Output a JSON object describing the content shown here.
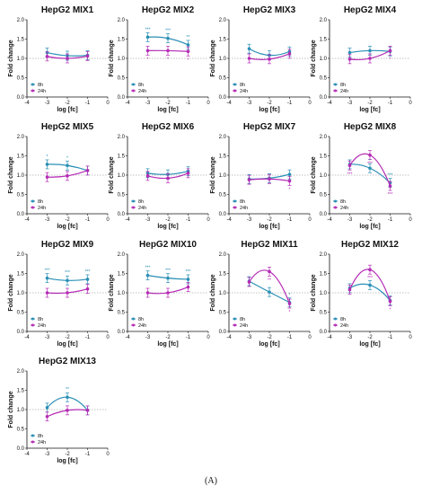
{
  "figure_caption": "(A)",
  "colors": {
    "h8": "#2a8fb5",
    "h24": "#b52bb5",
    "reference": "#888888"
  },
  "chart_data": [
    {
      "type": "line",
      "title": "HepG2 MIX1",
      "xlabel": "log [fc]",
      "ylabel": "Fold change",
      "x_ticks": [
        -4,
        -3,
        -2,
        -1,
        0
      ],
      "y_ticks": [
        0,
        0.5,
        1,
        1.5,
        2
      ],
      "xlim": [
        -4,
        0
      ],
      "ylim": [
        0,
        2
      ],
      "reference_line": 1,
      "legend": [
        "8h",
        "24h"
      ],
      "legend_position": "bottom-left",
      "x": [
        -3,
        -2,
        -1
      ],
      "series": [
        {
          "name": "8h",
          "values": [
            1.15,
            1.07,
            1.08
          ]
        },
        {
          "name": "24h",
          "values": [
            1.05,
            1.0,
            1.06
          ]
        }
      ],
      "annotations": []
    },
    {
      "type": "line",
      "title": "HepG2 MIX2",
      "xlabel": "log [fc]",
      "ylabel": "Fold change",
      "x_ticks": [
        -4,
        -3,
        -2,
        -1,
        0
      ],
      "y_ticks": [
        0,
        0.5,
        1,
        1.5,
        2
      ],
      "xlim": [
        -4,
        0
      ],
      "ylim": [
        0,
        2
      ],
      "reference_line": 1,
      "legend": [
        "8h",
        "24h"
      ],
      "legend_position": "bottom-left",
      "x": [
        -3,
        -2,
        -1
      ],
      "series": [
        {
          "name": "8h",
          "values": [
            1.55,
            1.52,
            1.35
          ]
        },
        {
          "name": "24h",
          "values": [
            1.2,
            1.2,
            1.18
          ]
        }
      ],
      "annotations": [
        {
          "series": "8h",
          "x": -3,
          "text": "***"
        },
        {
          "series": "8h",
          "x": -2,
          "text": "***"
        },
        {
          "series": "8h",
          "x": -1,
          "text": "**"
        },
        {
          "series": "24h",
          "x": -3,
          "text": "*"
        },
        {
          "series": "24h",
          "x": -2,
          "text": "*"
        },
        {
          "series": "24h",
          "x": -1,
          "text": "*"
        }
      ]
    },
    {
      "type": "line",
      "title": "HepG2 MIX3",
      "xlabel": "log [fc]",
      "ylabel": "Fold change",
      "x_ticks": [
        -4,
        -3,
        -2,
        -1,
        0
      ],
      "y_ticks": [
        0,
        0.5,
        1,
        1.5,
        2
      ],
      "xlim": [
        -4,
        0
      ],
      "ylim": [
        0,
        2
      ],
      "reference_line": 1,
      "legend": [
        "8h",
        "24h"
      ],
      "legend_position": "bottom-left",
      "x": [
        -3,
        -2,
        -1
      ],
      "series": [
        {
          "name": "8h",
          "values": [
            1.25,
            1.08,
            1.18
          ]
        },
        {
          "name": "24h",
          "values": [
            1.0,
            0.98,
            1.12
          ]
        }
      ],
      "annotations": []
    },
    {
      "type": "line",
      "title": "HepG2 MIX4",
      "xlabel": "log [fc]",
      "ylabel": "Fold change",
      "x_ticks": [
        -4,
        -3,
        -2,
        -1,
        0
      ],
      "y_ticks": [
        0,
        0.5,
        1,
        1.5,
        2
      ],
      "xlim": [
        -4,
        0
      ],
      "ylim": [
        0,
        2
      ],
      "reference_line": 1,
      "legend": [
        "8h",
        "24h"
      ],
      "legend_position": "bottom-left",
      "x": [
        -3,
        -2,
        -1
      ],
      "series": [
        {
          "name": "8h",
          "values": [
            1.15,
            1.2,
            1.18
          ]
        },
        {
          "name": "24h",
          "values": [
            0.98,
            1.0,
            1.2
          ]
        }
      ],
      "annotations": [
        {
          "series": "24h",
          "x": -1,
          "text": "*"
        }
      ]
    },
    {
      "type": "line",
      "title": "HepG2 MIX5",
      "xlabel": "log [fc]",
      "ylabel": "Fold change",
      "x_ticks": [
        -4,
        -3,
        -2,
        -1,
        0
      ],
      "y_ticks": [
        0,
        0.5,
        1,
        1.5,
        2
      ],
      "xlim": [
        -4,
        0
      ],
      "ylim": [
        0,
        2
      ],
      "reference_line": 1,
      "legend": [
        "8h",
        "24h"
      ],
      "legend_position": "bottom-left",
      "x": [
        -3,
        -2,
        -1
      ],
      "series": [
        {
          "name": "8h",
          "values": [
            1.28,
            1.25,
            1.12
          ]
        },
        {
          "name": "24h",
          "values": [
            0.95,
            0.98,
            1.12
          ]
        }
      ],
      "annotations": [
        {
          "series": "8h",
          "x": -3,
          "text": "*"
        },
        {
          "series": "8h",
          "x": -2,
          "text": "*"
        }
      ]
    },
    {
      "type": "line",
      "title": "HepG2 MIX6",
      "xlabel": "log [fc]",
      "ylabel": "Fold change",
      "x_ticks": [
        -4,
        -3,
        -2,
        -1,
        0
      ],
      "y_ticks": [
        0,
        0.5,
        1,
        1.5,
        2
      ],
      "xlim": [
        -4,
        0
      ],
      "ylim": [
        0,
        2
      ],
      "reference_line": 1,
      "legend": [
        "8h",
        "24h"
      ],
      "legend_position": "bottom-left",
      "x": [
        -3,
        -2,
        -1
      ],
      "series": [
        {
          "name": "8h",
          "values": [
            1.05,
            1.02,
            1.1
          ]
        },
        {
          "name": "24h",
          "values": [
            0.98,
            0.92,
            1.05
          ]
        }
      ],
      "annotations": []
    },
    {
      "type": "line",
      "title": "HepG2 MIX7",
      "xlabel": "log [fc]",
      "ylabel": "Fold change",
      "x_ticks": [
        -4,
        -3,
        -2,
        -1,
        0
      ],
      "y_ticks": [
        0,
        0.5,
        1,
        1.5,
        2
      ],
      "xlim": [
        -4,
        0
      ],
      "ylim": [
        0,
        2
      ],
      "reference_line": 1,
      "legend": [
        "8h",
        "24h"
      ],
      "legend_position": "bottom-left",
      "x": [
        -3,
        -2,
        -1
      ],
      "series": [
        {
          "name": "8h",
          "values": [
            0.9,
            0.92,
            1.02
          ]
        },
        {
          "name": "24h",
          "values": [
            0.88,
            0.9,
            0.85
          ]
        }
      ],
      "annotations": [
        {
          "series": "24h",
          "x": -1,
          "text": "*"
        }
      ]
    },
    {
      "type": "line",
      "title": "HepG2 MIX8",
      "xlabel": "log [fc]",
      "ylabel": "Fold change",
      "x_ticks": [
        -4,
        -3,
        -2,
        -1,
        0
      ],
      "y_ticks": [
        0,
        0.5,
        1,
        1.5,
        2
      ],
      "xlim": [
        -4,
        0
      ],
      "ylim": [
        0,
        2
      ],
      "reference_line": 1,
      "legend": [
        "8h",
        "24h"
      ],
      "legend_position": "bottom-left",
      "x": [
        -3,
        -2,
        -1
      ],
      "series": [
        {
          "name": "8h",
          "values": [
            1.28,
            1.18,
            0.8
          ]
        },
        {
          "name": "24h",
          "values": [
            1.25,
            1.52,
            0.72
          ]
        }
      ],
      "annotations": [
        {
          "series": "8h",
          "x": -2,
          "text": "*"
        },
        {
          "series": "8h",
          "x": -1,
          "text": "***"
        },
        {
          "series": "24h",
          "x": -3,
          "text": "***"
        },
        {
          "series": "24h",
          "x": -2,
          "text": "***"
        },
        {
          "series": "24h",
          "x": -1,
          "text": "***"
        }
      ]
    },
    {
      "type": "line",
      "title": "HepG2 MIX9",
      "xlabel": "log [fc]",
      "ylabel": "Fold change",
      "x_ticks": [
        -4,
        -3,
        -2,
        -1,
        0
      ],
      "y_ticks": [
        0,
        0.5,
        1,
        1.5,
        2
      ],
      "xlim": [
        -4,
        0
      ],
      "ylim": [
        0,
        2
      ],
      "reference_line": 1,
      "legend": [
        "8h",
        "24h"
      ],
      "legend_position": "bottom-left",
      "x": [
        -3,
        -2,
        -1
      ],
      "series": [
        {
          "name": "8h",
          "values": [
            1.38,
            1.32,
            1.35
          ]
        },
        {
          "name": "24h",
          "values": [
            1.0,
            1.0,
            1.1
          ]
        }
      ],
      "annotations": [
        {
          "series": "8h",
          "x": -3,
          "text": "***"
        },
        {
          "series": "8h",
          "x": -2,
          "text": "***"
        },
        {
          "series": "8h",
          "x": -1,
          "text": "***"
        }
      ]
    },
    {
      "type": "line",
      "title": "HepG2 MIX10",
      "xlabel": "log [fc]",
      "ylabel": "Fold change",
      "x_ticks": [
        -4,
        -3,
        -2,
        -1,
        0
      ],
      "y_ticks": [
        0,
        0.5,
        1,
        1.5,
        2
      ],
      "xlim": [
        -4,
        0
      ],
      "ylim": [
        0,
        2
      ],
      "reference_line": 1,
      "legend": [
        "8h",
        "24h"
      ],
      "legend_position": "bottom-left",
      "x": [
        -3,
        -2,
        -1
      ],
      "series": [
        {
          "name": "8h",
          "values": [
            1.45,
            1.38,
            1.35
          ]
        },
        {
          "name": "24h",
          "values": [
            1.0,
            1.0,
            1.15
          ]
        }
      ],
      "annotations": [
        {
          "series": "8h",
          "x": -3,
          "text": "***"
        },
        {
          "series": "8h",
          "x": -2,
          "text": "***"
        },
        {
          "series": "8h",
          "x": -1,
          "text": "***"
        }
      ]
    },
    {
      "type": "line",
      "title": "HepG2 MIX11",
      "xlabel": "log [fc]",
      "ylabel": "Fold change",
      "x_ticks": [
        -4,
        -3,
        -2,
        -1,
        0
      ],
      "y_ticks": [
        0,
        0.5,
        1,
        1.5,
        2
      ],
      "xlim": [
        -4,
        0
      ],
      "ylim": [
        0,
        2
      ],
      "reference_line": 1,
      "legend": [
        "8h",
        "24h"
      ],
      "legend_position": "bottom-left",
      "x": [
        -3,
        -2,
        -1
      ],
      "series": [
        {
          "name": "8h",
          "values": [
            1.3,
            1.02,
            0.75
          ]
        },
        {
          "name": "24h",
          "values": [
            1.28,
            1.55,
            0.72
          ]
        }
      ],
      "annotations": [
        {
          "series": "8h",
          "x": -1,
          "text": "*"
        },
        {
          "series": "24h",
          "x": -2,
          "text": "**"
        },
        {
          "series": "24h",
          "x": -1,
          "text": "*"
        }
      ]
    },
    {
      "type": "line",
      "title": "HepG2 MIX12",
      "xlabel": "log [fc]",
      "ylabel": "Fold change",
      "x_ticks": [
        -4,
        -3,
        -2,
        -1,
        0
      ],
      "y_ticks": [
        0,
        0.5,
        1,
        1.5,
        2
      ],
      "xlim": [
        -4,
        0
      ],
      "ylim": [
        0,
        2
      ],
      "reference_line": 1,
      "legend": [
        "8h",
        "24h"
      ],
      "legend_position": "bottom-left",
      "x": [
        -3,
        -2,
        -1
      ],
      "series": [
        {
          "name": "8h",
          "values": [
            1.12,
            1.2,
            0.8
          ]
        },
        {
          "name": "24h",
          "values": [
            1.08,
            1.6,
            0.78
          ]
        }
      ],
      "annotations": [
        {
          "series": "24h",
          "x": -2,
          "text": "***"
        },
        {
          "series": "24h",
          "x": -1,
          "text": "*"
        }
      ]
    },
    {
      "type": "line",
      "title": "HepG2 MIX13",
      "xlabel": "log [fc]",
      "ylabel": "Fold change",
      "x_ticks": [
        -4,
        -3,
        -2,
        -1,
        0
      ],
      "y_ticks": [
        0,
        0.5,
        1,
        1.5,
        2
      ],
      "xlim": [
        -4,
        0
      ],
      "ylim": [
        0,
        2
      ],
      "reference_line": 1,
      "legend": [
        "8h",
        "24h"
      ],
      "legend_position": "bottom-left",
      "x": [
        -3,
        -2,
        -1
      ],
      "series": [
        {
          "name": "8h",
          "values": [
            1.05,
            1.32,
            0.98
          ]
        },
        {
          "name": "24h",
          "values": [
            0.82,
            0.98,
            0.98
          ]
        }
      ],
      "annotations": [
        {
          "series": "8h",
          "x": -2,
          "text": "**"
        }
      ]
    }
  ]
}
